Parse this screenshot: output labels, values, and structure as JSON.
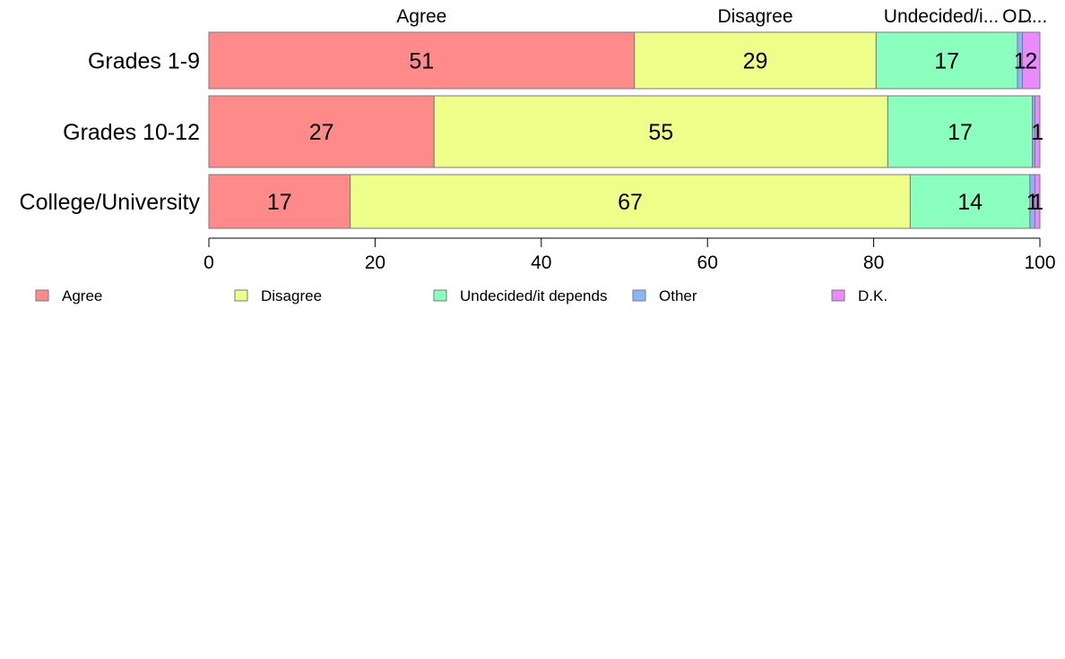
{
  "chart_data": {
    "type": "bar",
    "orientation": "horizontal",
    "stacked": true,
    "categories": [
      "Grades 1-9",
      "Grades 10-12",
      "College/University"
    ],
    "series": [
      {
        "name": "Agree",
        "color": "#ff8a8a",
        "values": [
          51.2,
          27.1,
          17.0
        ]
      },
      {
        "name": "Disagree",
        "color": "#eeff8a",
        "values": [
          29.1,
          54.6,
          67.4
        ]
      },
      {
        "name": "Undecided/it depends",
        "color": "#8affbe",
        "values": [
          17.0,
          17.4,
          14.4
        ]
      },
      {
        "name": "Other",
        "color": "#8ab6ff",
        "values": [
          0.6,
          0.3,
          0.6
        ]
      },
      {
        "name": "D.K.",
        "color": "#e98aff",
        "values": [
          2.1,
          0.6,
          0.6
        ]
      }
    ],
    "data_labels": [
      [
        "51",
        "29",
        "17",
        "1",
        "2"
      ],
      [
        "27",
        "55",
        "17",
        "",
        "1"
      ],
      [
        "17",
        "67",
        "14",
        "1",
        "1"
      ]
    ],
    "top_labels": [
      "Agree",
      "Disagree",
      "Undecided/i...",
      "O...",
      "D..."
    ],
    "x_ticks": [
      0,
      20,
      40,
      60,
      80,
      100
    ],
    "xlim": [
      0,
      100
    ],
    "grid": false,
    "legend_position": "bottom",
    "legend": [
      "Agree",
      "Disagree",
      "Undecided/it depends",
      "Other",
      "D.K."
    ]
  }
}
